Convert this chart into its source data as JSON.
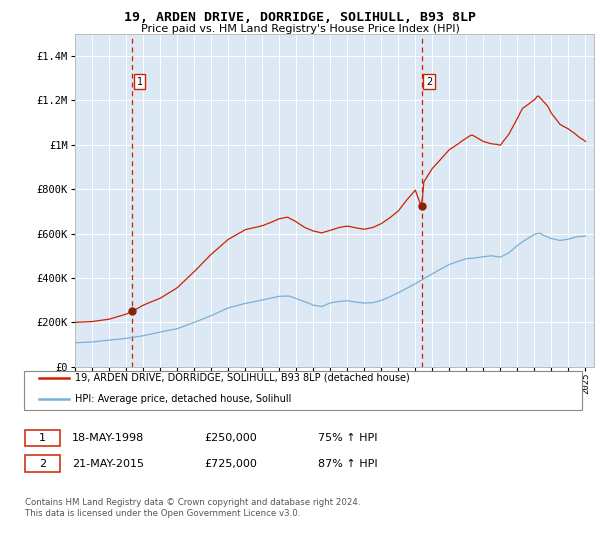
{
  "title": "19, ARDEN DRIVE, DORRIDGE, SOLIHULL, B93 8LP",
  "subtitle": "Price paid vs. HM Land Registry's House Price Index (HPI)",
  "legend_line1": "19, ARDEN DRIVE, DORRIDGE, SOLIHULL, B93 8LP (detached house)",
  "legend_line2": "HPI: Average price, detached house, Solihull",
  "footnote": "Contains HM Land Registry data © Crown copyright and database right 2024.\nThis data is licensed under the Open Government Licence v3.0.",
  "sale1_label": "1",
  "sale1_date": "18-MAY-1998",
  "sale1_price": "£250,000",
  "sale1_hpi": "75% ↑ HPI",
  "sale2_label": "2",
  "sale2_date": "21-MAY-2015",
  "sale2_price": "£725,000",
  "sale2_hpi": "87% ↑ HPI",
  "hpi_color": "#7bafd4",
  "price_color": "#cc2200",
  "bg_color": "#dce9f5",
  "grid_color": "#ffffff",
  "ylim": [
    0,
    1500000
  ],
  "yticks": [
    0,
    200000,
    400000,
    600000,
    800000,
    1000000,
    1200000,
    1400000
  ],
  "xlim_start": 1995.0,
  "xlim_end": 2025.5,
  "sale1_x": 1998.37,
  "sale1_y": 250000,
  "sale2_x": 2015.37,
  "sale2_y": 725000
}
